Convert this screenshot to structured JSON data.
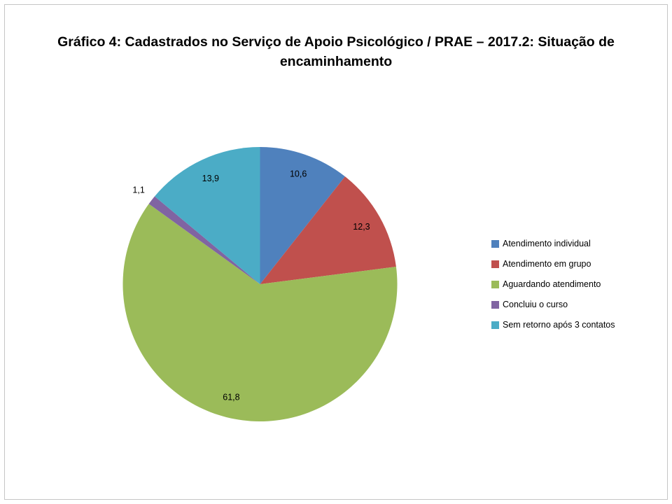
{
  "chart_data": {
    "type": "pie",
    "title": "Gráfico 4: Cadastrados no Serviço de Apoio Psicológico / PRAE – 2017.2: Situação de encaminhamento",
    "unit": "percent",
    "direction": "clockwise",
    "start_angle_deg": 0,
    "legend_position": "right",
    "slices": [
      {
        "label": "Atendimento individual",
        "value": 10.6,
        "display": "10,6",
        "color": "#4F81BD"
      },
      {
        "label": "Atendimento em grupo",
        "value": 12.3,
        "display": "12,3",
        "color": "#C0504D"
      },
      {
        "label": "Aguardando atendimento",
        "value": 61.8,
        "display": "61,8",
        "color": "#9BBB59"
      },
      {
        "label": "Concluiu o curso",
        "value": 1.1,
        "display": "1,1",
        "color": "#8064A2"
      },
      {
        "label": "Sem retorno após 3 contatos",
        "value": 13.9,
        "display": "13,9",
        "color": "#4BACC6"
      }
    ]
  }
}
